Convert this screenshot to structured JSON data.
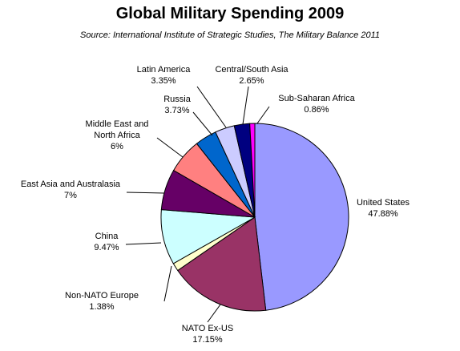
{
  "chart_data": {
    "type": "pie",
    "title": "Global Military Spending 2009",
    "subtitle": "Source: International Institute of Strategic Studies, The Military Balance 2011",
    "slices": [
      {
        "label": "United States",
        "value_label": "47.88%",
        "value": 47.88,
        "color": "#9999ff"
      },
      {
        "label": "NATO Ex-US",
        "value_label": "17.15%",
        "value": 17.15,
        "color": "#993366"
      },
      {
        "label": "Non-NATO Europe",
        "value_label": "1.38%",
        "value": 1.38,
        "color": "#ffffcc"
      },
      {
        "label": "China",
        "value_label": "9.47%",
        "value": 9.47,
        "color": "#ccffff"
      },
      {
        "label": "East Asia and Australasia",
        "value_label": "7%",
        "value": 7,
        "color": "#660066"
      },
      {
        "label": "Middle East and North Africa",
        "value_label": "6%",
        "value": 6,
        "color": "#ff8080"
      },
      {
        "label": "Russia",
        "value_label": "3.73%",
        "value": 3.73,
        "color": "#0066cc"
      },
      {
        "label": "Latin America",
        "value_label": "3.35%",
        "value": 3.35,
        "color": "#ccccff"
      },
      {
        "label": "Central/South Asia",
        "value_label": "2.65%",
        "value": 2.65,
        "color": "#000080"
      },
      {
        "label": "Sub-Saharan Africa",
        "value_label": "0.86%",
        "value": 0.86,
        "color": "#ff00ff"
      }
    ]
  }
}
